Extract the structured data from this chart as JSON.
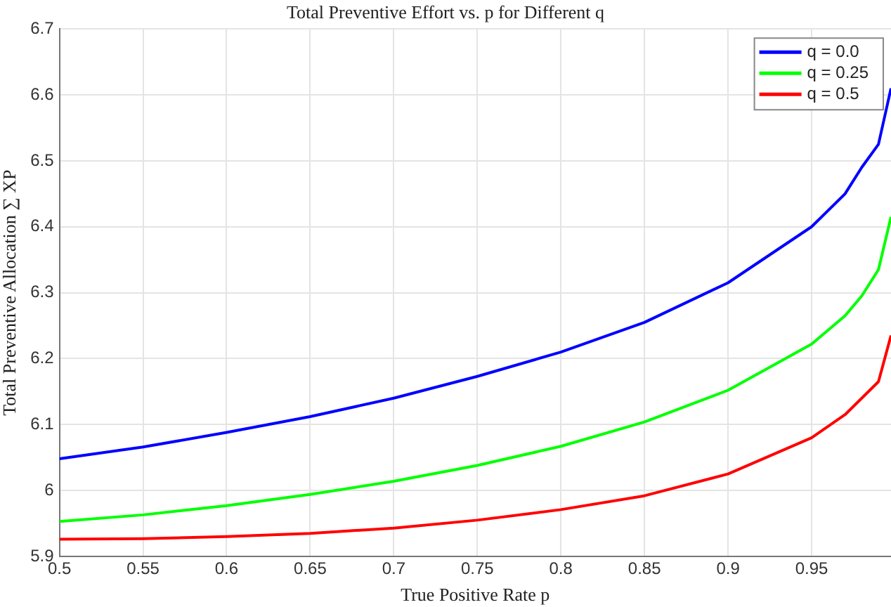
{
  "chart_data": {
    "type": "line",
    "title": "Total Preventive Effort vs. p for Different q",
    "xlabel": "True Positive Rate p",
    "ylabel": "Total Preventive Allocation ∑ XP",
    "x": [
      0.5,
      0.55,
      0.6,
      0.65,
      0.7,
      0.75,
      0.8,
      0.85,
      0.9,
      0.95,
      0.97,
      0.98,
      0.99,
      0.9975
    ],
    "series": [
      {
        "name": "q = 0.0",
        "color": "#0000ff",
        "values": [
          6.048,
          6.066,
          6.088,
          6.112,
          6.14,
          6.173,
          6.21,
          6.255,
          6.315,
          6.4,
          6.45,
          6.49,
          6.525,
          6.61
        ]
      },
      {
        "name": "q = 0.25",
        "color": "#00ff00",
        "values": [
          5.953,
          5.963,
          5.977,
          5.994,
          6.014,
          6.038,
          6.067,
          6.104,
          6.152,
          6.222,
          6.265,
          6.295,
          6.335,
          6.415
        ]
      },
      {
        "name": "q = 0.5",
        "color": "#ff0000",
        "values": [
          5.926,
          5.927,
          5.93,
          5.935,
          5.943,
          5.955,
          5.971,
          5.992,
          6.025,
          6.08,
          6.115,
          6.14,
          6.165,
          6.235
        ]
      }
    ],
    "xlim": [
      0.5,
      0.9975
    ],
    "xticks": [
      0.5,
      0.55,
      0.6,
      0.65,
      0.7,
      0.75,
      0.8,
      0.85,
      0.9,
      0.95
    ],
    "ylim": [
      5.9,
      6.7
    ],
    "yticks": [
      5.9,
      6,
      6.1,
      6.2,
      6.3,
      6.4,
      6.5,
      6.6,
      6.7
    ],
    "grid": true,
    "legend": "top right",
    "marker": "none",
    "line_style": "solid"
  }
}
